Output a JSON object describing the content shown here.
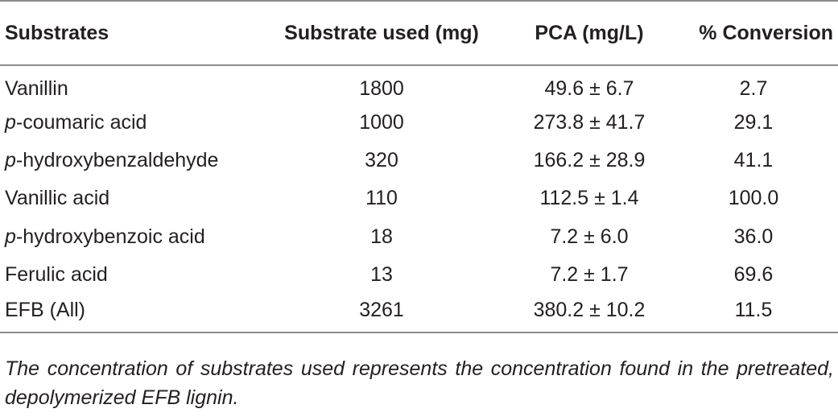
{
  "table": {
    "headers": [
      "Substrates",
      "Substrate used (mg)",
      "PCA (mg/L)",
      "% Conversion"
    ],
    "rows": [
      {
        "prefix": "",
        "name": "Vanillin",
        "substrate_used": "1800",
        "pca": "49.6 ± 6.7",
        "conversion": "2.7"
      },
      {
        "prefix": "p",
        "name": "-coumaric acid",
        "substrate_used": "1000",
        "pca": "273.8 ± 41.7",
        "conversion": "29.1"
      },
      {
        "prefix": "p",
        "name": "-hydroxybenzaldehyde",
        "substrate_used": "320",
        "pca": "166.2 ± 28.9",
        "conversion": "41.1"
      },
      {
        "prefix": "",
        "name": "Vanillic acid",
        "substrate_used": "110",
        "pca": "112.5 ± 1.4",
        "conversion": "100.0"
      },
      {
        "prefix": "p",
        "name": "-hydroxybenzoic acid",
        "substrate_used": "18",
        "pca": "7.2 ± 6.0",
        "conversion": "36.0"
      },
      {
        "prefix": "",
        "name": "Ferulic acid",
        "substrate_used": "13",
        "pca": "7.2 ± 1.7",
        "conversion": "69.6"
      },
      {
        "prefix": "",
        "name": "EFB (All)",
        "substrate_used": "3261",
        "pca": "380.2 ± 10.2",
        "conversion": "11.5"
      }
    ]
  },
  "footnote": "The concentration of substrates used represents the concentration found in the pretreated, depolymerized EFB lignin."
}
